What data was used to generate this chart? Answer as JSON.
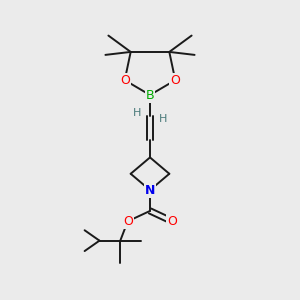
{
  "background_color": "#ebebeb",
  "bond_color": "#1a1a1a",
  "atom_colors": {
    "B": "#00aa00",
    "O": "#ff0000",
    "N": "#0000ee",
    "C": "#1a1a1a",
    "H": "#4a7a7a"
  },
  "figsize": [
    3.0,
    3.0
  ],
  "dpi": 100
}
